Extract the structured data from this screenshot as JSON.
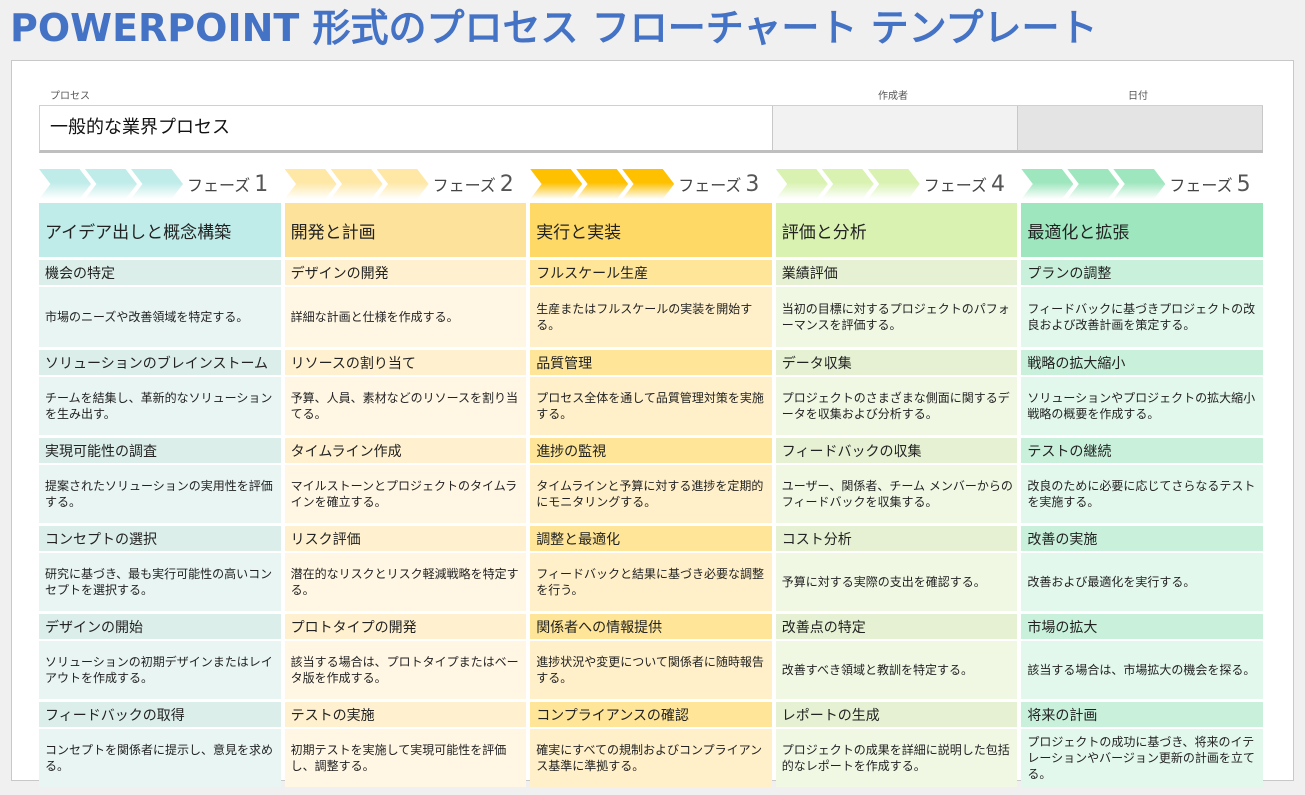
{
  "title": "POWERPOINT 形式のプロセス フローチャート テンプレート",
  "fields": {
    "process_label": "プロセス",
    "process_value": "一般的な業界プロセス",
    "author_label": "作成者",
    "author_value": "",
    "date_label": "日付",
    "date_value": ""
  },
  "phases": [
    {
      "label": "フェーズ",
      "number": "1",
      "colors": {
        "chevron": "#bfece9",
        "head": "#bfece9",
        "sub": "#dbeee9",
        "desc": "#e8f5f2"
      },
      "title": "アイデア出しと概念構築",
      "steps": [
        {
          "name": "機会の特定",
          "desc": "市場のニーズや改善領域を特定する。"
        },
        {
          "name": "ソリューションのブレインストーム",
          "desc": "チームを結集し、革新的なソリューションを生み出す。"
        },
        {
          "name": "実現可能性の調査",
          "desc": "提案されたソリューションの実用性を評価する。"
        },
        {
          "name": "コンセプトの選択",
          "desc": "研究に基づき、最も実行可能性の高いコンセプトを選択する。"
        },
        {
          "name": "デザインの開始",
          "desc": "ソリューションの初期デザインまたはレイアウトを作成する。"
        },
        {
          "name": "フィードバックの取得",
          "desc": "コンセプトを関係者に提示し、意見を求める。"
        }
      ]
    },
    {
      "label": "フェーズ",
      "number": "2",
      "colors": {
        "chevron": "#ffe7a6",
        "head": "#fde29b",
        "sub": "#fff1cf",
        "desc": "#fff7e4"
      },
      "title": "開発と計画",
      "steps": [
        {
          "name": "デザインの開発",
          "desc": "詳細な計画と仕様を作成する。"
        },
        {
          "name": "リソースの割り当て",
          "desc": "予算、人員、素材などのリソースを割り当てる。"
        },
        {
          "name": "タイムライン作成",
          "desc": "マイルストーンとプロジェクトのタイムラインを確立する。"
        },
        {
          "name": "リスク評価",
          "desc": "潜在的なリスクとリスク軽減戦略を特定する。"
        },
        {
          "name": "プロトタイプの開発",
          "desc": "該当する場合は、プロトタイプまたはベータ版を作成する。"
        },
        {
          "name": "テストの実施",
          "desc": "初期テストを実施して実現可能性を評価し、調整する。"
        }
      ]
    },
    {
      "label": "フェーズ",
      "number": "3",
      "colors": {
        "chevron": "#ffc000",
        "head": "#ffd966",
        "sub": "#ffe597",
        "desc": "#fff0c9"
      },
      "title": "実行と実装",
      "steps": [
        {
          "name": "フルスケール生産",
          "desc": "生産またはフルスケールの実装を開始する。"
        },
        {
          "name": "品質管理",
          "desc": "プロセス全体を通して品質管理対策を実施する。"
        },
        {
          "name": "進捗の監視",
          "desc": "タイムラインと予算に対する進捗を定期的にモニタリングする。"
        },
        {
          "name": "調整と最適化",
          "desc": "フィードバックと結果に基づき必要な調整を行う。"
        },
        {
          "name": "関係者への情報提供",
          "desc": "進捗状況や変更について関係者に随時報告する。"
        },
        {
          "name": "コンプライアンスの確認",
          "desc": "確実にすべての規制およびコンプライアンス基準に準拠する。"
        }
      ]
    },
    {
      "label": "フェーズ",
      "number": "4",
      "colors": {
        "chevron": "#d9f2b1",
        "head": "#d9f2b1",
        "sub": "#e5f1d2",
        "desc": "#f0f8e4"
      },
      "title": "評価と分析",
      "steps": [
        {
          "name": "業績評価",
          "desc": "当初の目標に対するプロジェクトのパフォーマンスを評価する。"
        },
        {
          "name": "データ収集",
          "desc": "プロジェクトのさまざまな側面に関するデータを収集および分析する。"
        },
        {
          "name": "フィードバックの収集",
          "desc": "ユーザー、関係者、チーム メンバーからのフィードバックを収集する。"
        },
        {
          "name": "コスト分析",
          "desc": "予算に対する実際の支出を確認する。"
        },
        {
          "name": "改善点の特定",
          "desc": "改善すべき領域と教訓を特定する。"
        },
        {
          "name": "レポートの生成",
          "desc": "プロジェクトの成果を詳細に説明した包括的なレポートを作成する。"
        }
      ]
    },
    {
      "label": "フェーズ",
      "number": "5",
      "colors": {
        "chevron": "#9ee6be",
        "head": "#9ee6be",
        "sub": "#c8f0da",
        "desc": "#e3f8ed"
      },
      "title": "最適化と拡張",
      "steps": [
        {
          "name": "プランの調整",
          "desc": "フィードバックに基づきプロジェクトの改良および改善計画を策定する。"
        },
        {
          "name": "戦略の拡大縮小",
          "desc": "ソリューションやプロジェクトの拡大縮小戦略の概要を作成する。"
        },
        {
          "name": "テストの継続",
          "desc": "改良のために必要に応じてさらなるテストを実施する。"
        },
        {
          "name": "改善の実施",
          "desc": "改善および最適化を実行する。"
        },
        {
          "name": "市場の拡大",
          "desc": "該当する場合は、市場拡大の機会を探る。"
        },
        {
          "name": "将来の計画",
          "desc": "プロジェクトの成功に基づき、将来のイテレーションやバージョン更新の計画を立てる。"
        }
      ]
    }
  ]
}
